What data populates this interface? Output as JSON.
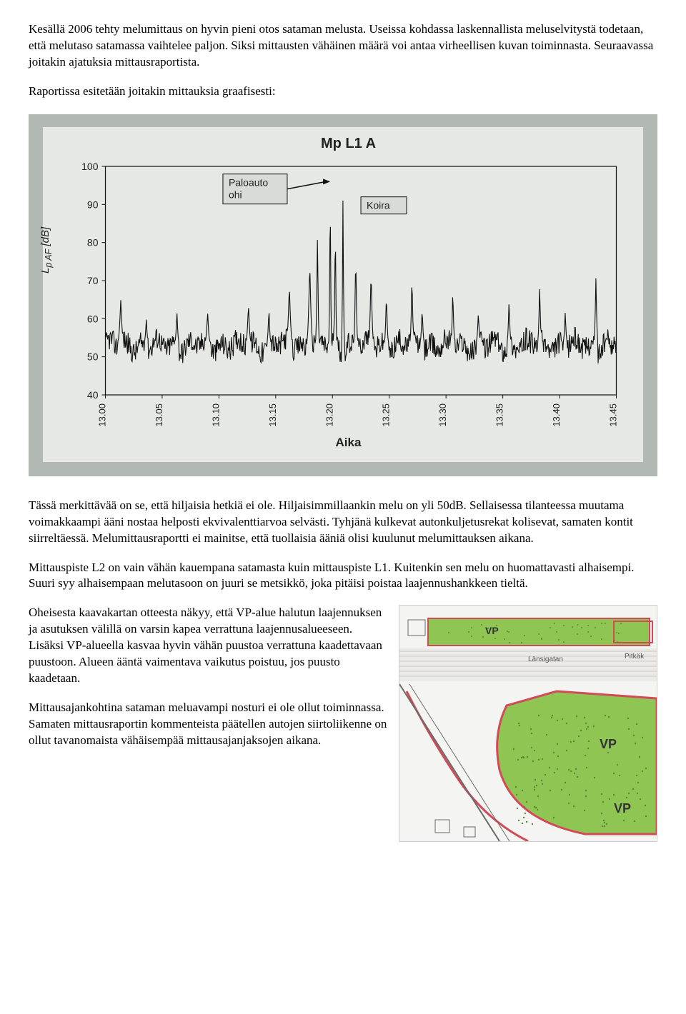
{
  "para1": "Kesällä 2006 tehty melumittaus on hyvin pieni otos sataman melusta. Useissa kohdassa laskennallista meluselvitystä todetaan, että melutaso satamassa vaihtelee paljon. Siksi mittausten vähäinen määrä voi antaa virheellisen kuvan toiminnasta. Seuraavassa joitakin ajatuksia mittausraportista.",
  "para2": "Raportissa esitetään joitakin mittauksia graafisesti:",
  "para3": "Tässä merkittävää on se, että hiljaisia hetkiä ei ole. Hiljaisimmillaankin melu on yli 50dB. Sellaisessa tilanteessa muutama voimakkaampi ääni nostaa helposti ekvivalenttiarvoa selvästi. Tyhjänä kulkevat autonkuljetusrekat kolisevat, samaten kontit siirreltäessä. Melumittausraportti ei mainitse, että tuollaisia ääniä olisi kuulunut melumittauksen aikana.",
  "para4": "Mittauspiste L2 on vain vähän kauempana satamasta kuin mittauspiste L1. Kuitenkin sen melu on huomattavasti alhaisempi. Suuri syy alhaisempaan melutasoon on juuri se metsikkö, joka pitäisi poistaa laajennushankkeen tieltä.",
  "para5": "Oheisesta kaavakartan otteesta näkyy, että VP-alue halutun laajennuksen ja asutuksen välillä on varsin kapea verrattuna laajennusalueeseen. Lisäksi VP-alueella kasvaa hyvin vähän puustoa verrattuna kaadettavaan puustoon. Alueen ääntä vaimentava vaikutus poistuu, jos puusto kaadetaan.",
  "para6": "Mittausajankohtina sataman meluavampi nosturi ei ole ollut toiminnassa. Samaten mittausraportin kommenteista päätellen autojen siirtoliikenne on ollut tavanomaista vähäisempää mittausajanjaksojen aikana.",
  "chart": {
    "title": "Mp L1 A",
    "ylabel": "L_pAF [dB]",
    "xlabel": "Aika",
    "anno1": "Paloauto ohi",
    "anno2": "Koira",
    "yticks": [
      40,
      50,
      60,
      70,
      80,
      90,
      100
    ],
    "xticks": [
      "13.00",
      "13.05",
      "13.10",
      "13.15",
      "13.20",
      "13.25",
      "13.30",
      "13.35",
      "13.40",
      "13.45"
    ],
    "bg": "#e6e8e4",
    "line": "#111",
    "grid": "#9aa098",
    "box": "#d8dcd6",
    "tickfont": 14,
    "titlefont": 20
  },
  "map": {
    "bg": "#f4f4f2",
    "green": "#8fc552",
    "red": "#d24a57",
    "gray": "#bcbcbc",
    "dark": "#6a6a68",
    "vp_label": "VP",
    "street": "Länsigatan",
    "pit": "Pitkäk"
  }
}
